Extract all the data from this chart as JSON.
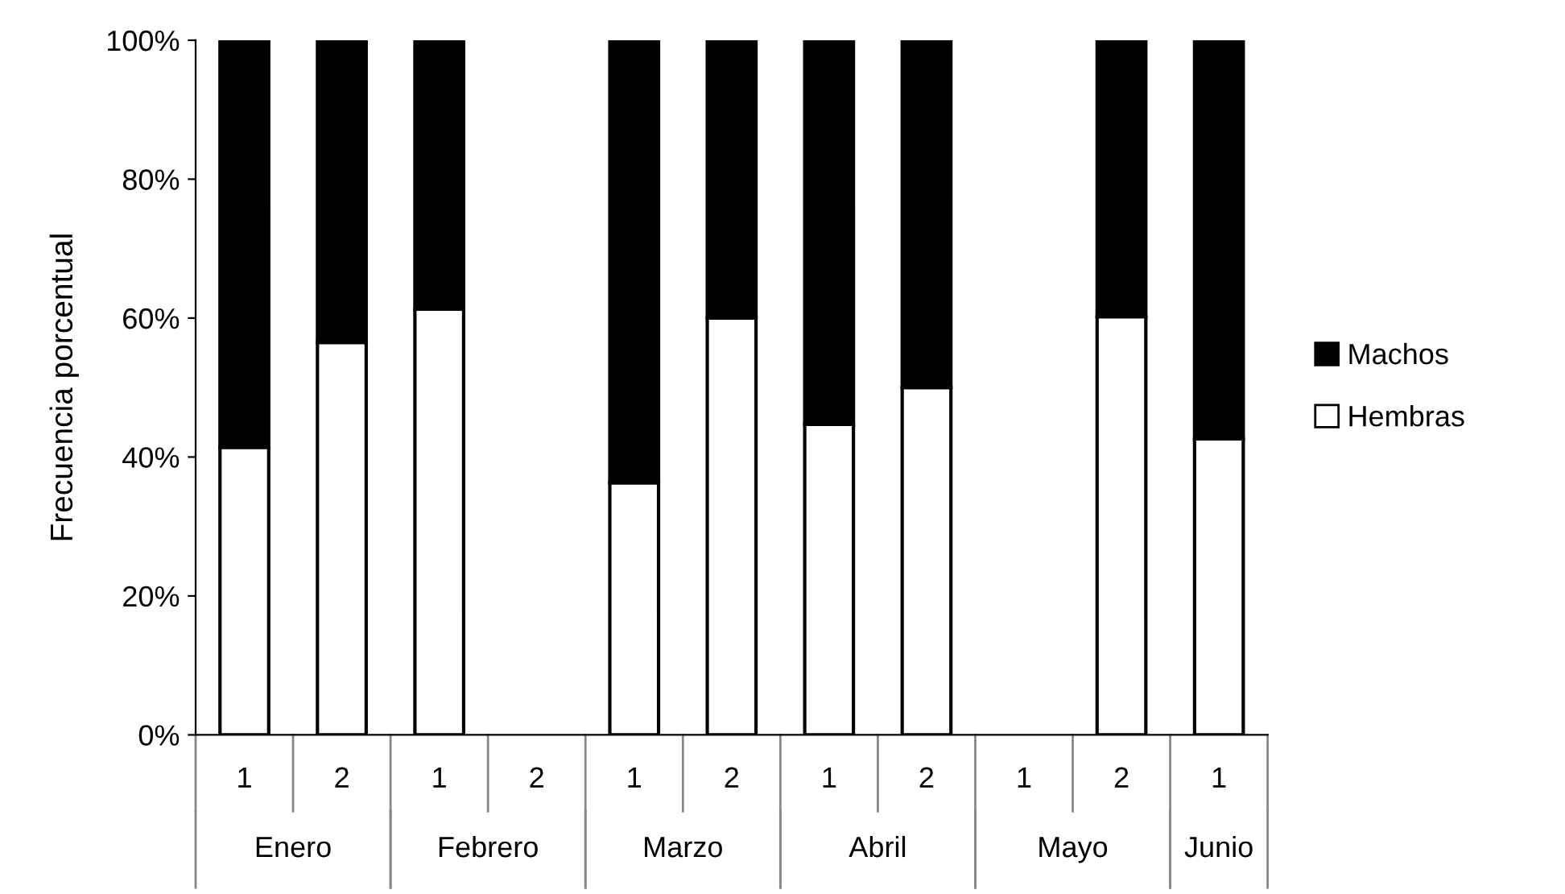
{
  "chart_data": {
    "type": "bar",
    "stacked": true,
    "ylabel": "Frecuencia porcentual",
    "categories": [
      "1",
      "2",
      "1",
      "2",
      "1",
      "2",
      "1",
      "2",
      "1",
      "2",
      "1"
    ],
    "annotations": [
      "Enero",
      "Febrero",
      "Marzo",
      "Abril",
      "Mayo",
      "Junio"
    ],
    "series": [
      {
        "name": "Hembras",
        "color": "#ffffff",
        "values": [
          41.4,
          56.5,
          61.3,
          null,
          36.3,
          60.0,
          44.7,
          50.0,
          null,
          60.2,
          42.6
        ]
      },
      {
        "name": "Machos",
        "color": "#000000",
        "values": [
          58.6,
          43.5,
          38.7,
          null,
          63.7,
          40.0,
          55.3,
          50.0,
          null,
          39.8,
          57.4
        ]
      }
    ],
    "ylim": [
      0,
      100
    ],
    "yticks": [
      {
        "value": 0,
        "label": "0%"
      },
      {
        "value": 20,
        "label": "20%"
      },
      {
        "value": 40,
        "label": "40%"
      },
      {
        "value": 60,
        "label": "60%"
      },
      {
        "value": 80,
        "label": "80%"
      },
      {
        "value": 100,
        "label": "100%"
      }
    ],
    "grid": false,
    "legend": "right"
  }
}
